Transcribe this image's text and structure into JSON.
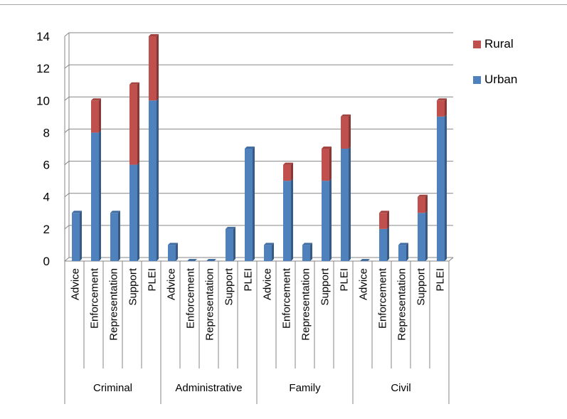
{
  "chart_data": {
    "type": "bar",
    "stacked": true,
    "title": "",
    "xlabel": "",
    "ylabel": "",
    "ylim": [
      0,
      14
    ],
    "yticks": [
      0,
      2,
      4,
      6,
      8,
      10,
      12,
      14
    ],
    "grid": true,
    "legend_position": "right",
    "groups": [
      {
        "name": "Criminal",
        "categories": [
          "Advice",
          "Enforcement",
          "Representation",
          "Support",
          "PLEI"
        ]
      },
      {
        "name": "Administrative",
        "categories": [
          "Advice",
          "Enforcement",
          "Representation",
          "Support",
          "PLEI"
        ]
      },
      {
        "name": "Family",
        "categories": [
          "Advice",
          "Enforcement",
          "Representation",
          "Support",
          "PLEI"
        ]
      },
      {
        "name": "Civil",
        "categories": [
          "Advice",
          "Enforcement",
          "Representation",
          "Support",
          "PLEI"
        ]
      }
    ],
    "series": [
      {
        "name": "Urban",
        "color": "#4f81bd",
        "values": [
          3,
          8,
          3,
          6,
          10,
          1,
          0,
          0,
          2,
          7,
          1,
          5,
          1,
          5,
          7,
          0,
          2,
          1,
          3,
          9
        ]
      },
      {
        "name": "Rural",
        "color": "#c0504d",
        "values": [
          0,
          2,
          0,
          5,
          4,
          0,
          0,
          0,
          0,
          0,
          0,
          1,
          0,
          2,
          2,
          0,
          1,
          0,
          1,
          1
        ]
      }
    ]
  },
  "legend": {
    "items": [
      {
        "label": "Rural",
        "color": "#c0504d"
      },
      {
        "label": "Urban",
        "color": "#4f81bd"
      }
    ]
  }
}
